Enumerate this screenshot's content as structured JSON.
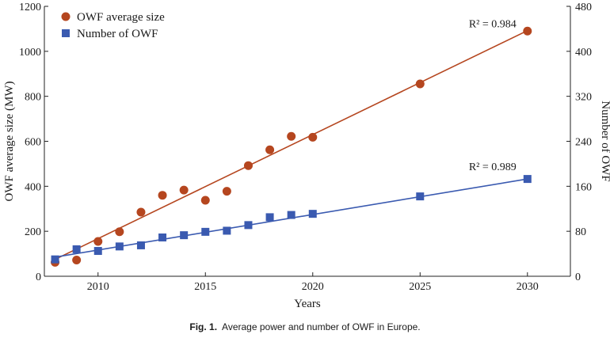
{
  "chart_data": {
    "type": "scatter",
    "xlabel": "Years",
    "ylabel_left": "OWF average size (MW)",
    "ylabel_right": "Number of OWF",
    "xlim": [
      2007.5,
      2032
    ],
    "ylim_left": [
      0,
      1200
    ],
    "ylim_right": [
      0,
      480
    ],
    "x_ticks": [
      2010,
      2015,
      2020,
      2025,
      2030
    ],
    "y_left_ticks": [
      0,
      200,
      400,
      600,
      800,
      1000,
      1200
    ],
    "y_right_ticks": [
      0,
      80,
      160,
      240,
      320,
      400,
      480
    ],
    "grid": false,
    "legend_position": "top-left",
    "series": [
      {
        "name": "OWF average size",
        "axis": "left",
        "marker": "circle",
        "color": "#b5461f",
        "x": [
          2008,
          2009,
          2010,
          2011,
          2012,
          2013,
          2014,
          2015,
          2016,
          2017,
          2018,
          2019,
          2020,
          2025,
          2030
        ],
        "y": [
          62,
          72,
          155,
          198,
          285,
          360,
          383,
          338,
          378,
          492,
          562,
          622,
          618,
          855,
          1090
        ],
        "fit": {
          "x": [
            2008,
            2030
          ],
          "y": [
            75,
            1092
          ]
        },
        "r2_label": "R² = 0.984"
      },
      {
        "name": "Number of OWF",
        "axis": "right",
        "marker": "square",
        "color": "#3a5ab0",
        "x": [
          2008,
          2009,
          2010,
          2011,
          2012,
          2013,
          2014,
          2015,
          2016,
          2017,
          2018,
          2019,
          2020,
          2025,
          2030
        ],
        "y": [
          30,
          48,
          45,
          53,
          55,
          69,
          73,
          79,
          81,
          91,
          105,
          109,
          111,
          142,
          173
        ],
        "fit": {
          "x": [
            2008,
            2030
          ],
          "y": [
            34,
            173
          ]
        },
        "r2_label": "R² = 0.989"
      }
    ]
  },
  "caption": {
    "label": "Fig. 1.",
    "text": "Average power and number of OWF in Europe."
  }
}
